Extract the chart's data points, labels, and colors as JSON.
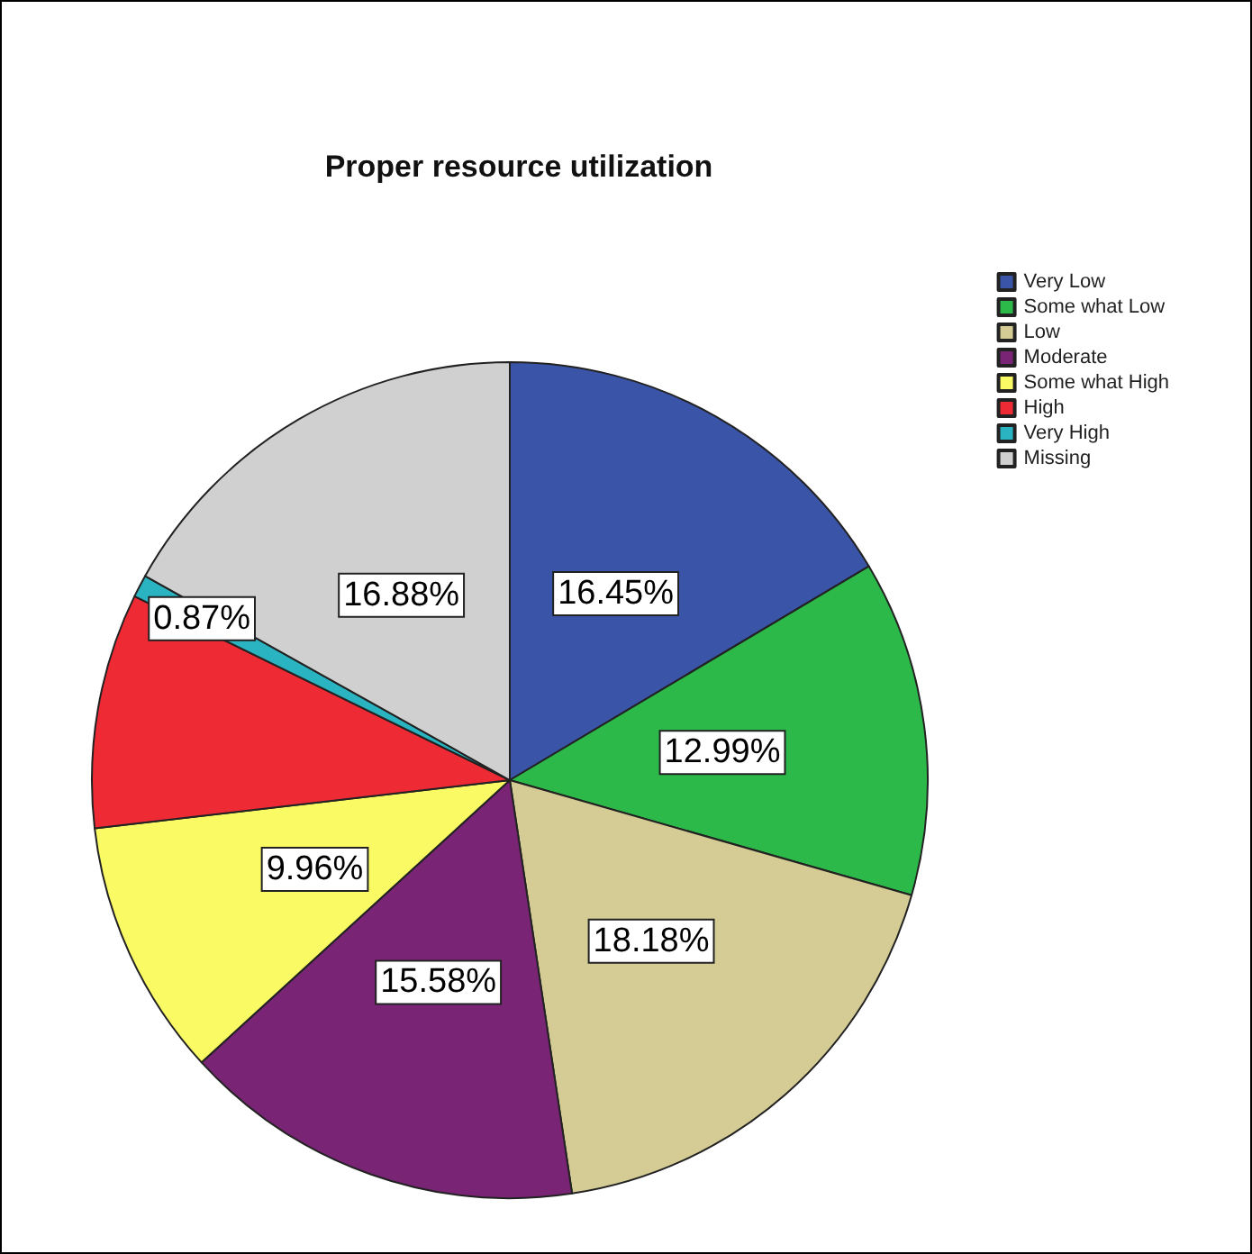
{
  "chart_data": {
    "type": "pie",
    "title": "Proper resource utilization",
    "categories": [
      "Very Low",
      "Some what Low",
      "Low",
      "Moderate",
      "Some what High",
      "High",
      "Very High",
      "Missing"
    ],
    "values": [
      16.45,
      12.99,
      18.18,
      15.58,
      9.96,
      9.09,
      0.87,
      16.88
    ],
    "colors": [
      "#3a54a8",
      "#2db84a",
      "#d4cc94",
      "#7a2475",
      "#fafa64",
      "#ee2a35",
      "#2ab3c1",
      "#d0d0d0"
    ],
    "value_labels": [
      "16.45%",
      "12.99%",
      "18.18%",
      "15.58%",
      "9.96%",
      null,
      "0.87%",
      "16.88%"
    ],
    "legend": "top right"
  }
}
